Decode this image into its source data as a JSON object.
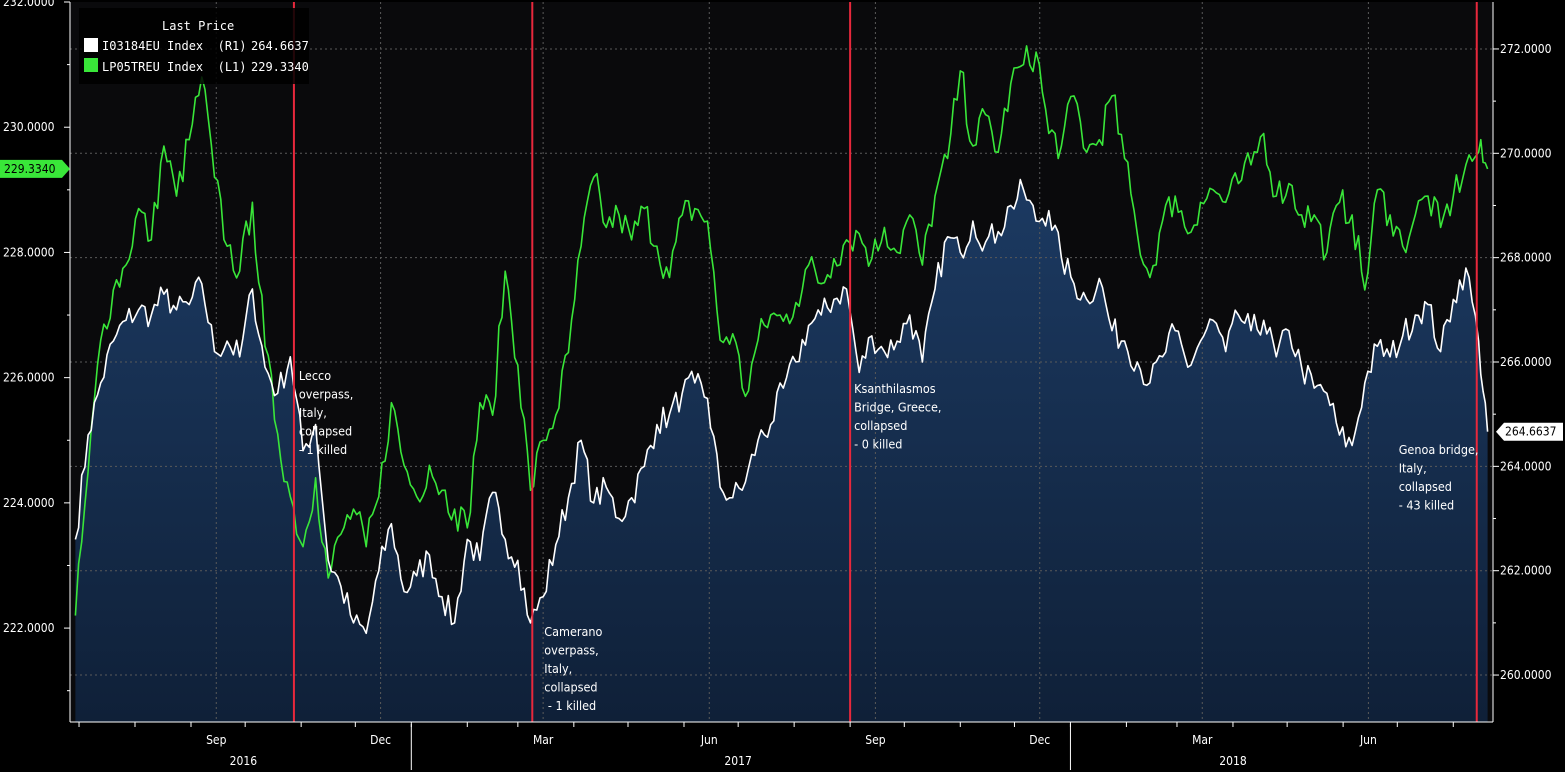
{
  "chart_data": {
    "type": "line",
    "legend": {
      "title": "Last Price",
      "placement": "top-left",
      "entries": [
        {
          "label": "I03184EU Index  (R1)",
          "value": "264.6637",
          "color": "#ffffff"
        },
        {
          "label": "LP05TREU Index  (L1)",
          "value": "229.3340",
          "color": "#39e639"
        }
      ]
    },
    "grid": true,
    "x_axis": {
      "month_ticks": [
        "Sep",
        "Dec",
        "Mar",
        "Jun",
        "Sep",
        "Dec",
        "Mar",
        "Jun"
      ],
      "year_labels": [
        "2016",
        "2017",
        "2018"
      ]
    },
    "y_left": {
      "ylim": [
        220.5,
        232.0
      ],
      "ticks": [
        "232.0000",
        "230.0000",
        "228.0000",
        "226.0000",
        "224.0000",
        "222.0000"
      ],
      "last_value_tag": "229.3340",
      "last_value": 229.334
    },
    "y_right": {
      "ylim": [
        259.1,
        272.9
      ],
      "ticks": [
        "272.0000",
        "270.0000",
        "268.0000",
        "266.0000",
        "264.0000",
        "262.0000",
        "260.0000"
      ],
      "last_value_tag": "264.6637",
      "last_value": 264.6637
    },
    "events": [
      {
        "date": "2016-10-28",
        "label_lines": [
          "Lecco",
          "overpass,",
          "Italy,",
          "collapsed",
          "- 1 killed"
        ]
      },
      {
        "date": "2017-03-09",
        "label_lines": [
          "Camerano",
          "overpass,",
          "Italy,",
          "collapsed",
          " - 1 killed"
        ]
      },
      {
        "date": "2017-09-01",
        "label_lines": [
          "Ksanthilasmos",
          "Bridge, Greece,",
          "collapsed",
          "- 0 killed"
        ]
      },
      {
        "date": "2018-08-14",
        "label_lines": [
          "Genoa bridge,",
          "Italy,",
          "collapsed",
          "- 43 killed"
        ]
      }
    ],
    "series": [
      {
        "name": "LP05TREU Index",
        "axis": "left",
        "color": "#39e639",
        "points": [
          [
            "2016-06-29",
            222.2
          ],
          [
            "2016-07-06",
            224.5
          ],
          [
            "2016-07-13",
            226.6
          ],
          [
            "2016-07-20",
            227.4
          ],
          [
            "2016-07-27",
            227.8
          ],
          [
            "2016-08-03",
            228.7
          ],
          [
            "2016-08-10",
            228.2
          ],
          [
            "2016-08-17",
            229.7
          ],
          [
            "2016-08-24",
            228.9
          ],
          [
            "2016-08-31",
            229.8
          ],
          [
            "2016-09-07",
            230.8
          ],
          [
            "2016-09-14",
            229.2
          ],
          [
            "2016-09-21",
            228.1
          ],
          [
            "2016-09-28",
            227.7
          ],
          [
            "2016-10-05",
            228.8
          ],
          [
            "2016-10-12",
            226.5
          ],
          [
            "2016-10-19",
            225.1
          ],
          [
            "2016-10-26",
            224.1
          ],
          [
            "2016-11-02",
            223.3
          ],
          [
            "2016-11-09",
            224.4
          ],
          [
            "2016-11-16",
            222.8
          ],
          [
            "2016-11-23",
            223.5
          ],
          [
            "2016-11-30",
            223.9
          ],
          [
            "2016-12-07",
            223.3
          ],
          [
            "2016-12-14",
            224.1
          ],
          [
            "2016-12-21",
            225.6
          ],
          [
            "2016-12-28",
            224.6
          ],
          [
            "2017-01-04",
            224.1
          ],
          [
            "2017-01-11",
            224.6
          ],
          [
            "2017-01-18",
            224.2
          ],
          [
            "2017-01-25",
            223.9
          ],
          [
            "2017-02-01",
            223.6
          ],
          [
            "2017-02-08",
            225.6
          ],
          [
            "2017-02-15",
            225.4
          ],
          [
            "2017-02-22",
            227.7
          ],
          [
            "2017-03-01",
            226.2
          ],
          [
            "2017-03-08",
            224.2
          ],
          [
            "2017-03-15",
            225.0
          ],
          [
            "2017-03-22",
            225.4
          ],
          [
            "2017-03-29",
            226.4
          ],
          [
            "2017-04-05",
            228.1
          ],
          [
            "2017-04-12",
            229.2
          ],
          [
            "2017-04-19",
            228.4
          ],
          [
            "2017-04-26",
            228.6
          ],
          [
            "2017-05-03",
            228.2
          ],
          [
            "2017-05-10",
            228.7
          ],
          [
            "2017-05-17",
            228.1
          ],
          [
            "2017-05-24",
            227.6
          ],
          [
            "2017-05-31",
            228.6
          ],
          [
            "2017-06-07",
            228.7
          ],
          [
            "2017-06-14",
            228.5
          ],
          [
            "2017-06-21",
            226.6
          ],
          [
            "2017-06-28",
            226.7
          ],
          [
            "2017-07-05",
            225.7
          ],
          [
            "2017-07-12",
            226.6
          ],
          [
            "2017-07-19",
            227.0
          ],
          [
            "2017-07-26",
            226.9
          ],
          [
            "2017-08-02",
            227.2
          ],
          [
            "2017-08-09",
            227.8
          ],
          [
            "2017-08-16",
            227.5
          ],
          [
            "2017-08-23",
            227.9
          ],
          [
            "2017-08-30",
            228.2
          ],
          [
            "2017-09-06",
            228.3
          ],
          [
            "2017-09-13",
            227.9
          ],
          [
            "2017-09-20",
            228.4
          ],
          [
            "2017-09-27",
            228.0
          ],
          [
            "2017-10-04",
            228.6
          ],
          [
            "2017-10-11",
            227.8
          ],
          [
            "2017-10-18",
            228.9
          ],
          [
            "2017-10-25",
            229.5
          ],
          [
            "2017-11-01",
            230.9
          ],
          [
            "2017-11-08",
            229.7
          ],
          [
            "2017-11-15",
            230.2
          ],
          [
            "2017-11-22",
            229.6
          ],
          [
            "2017-11-29",
            230.7
          ],
          [
            "2017-12-06",
            231.0
          ],
          [
            "2017-12-13",
            231.2
          ],
          [
            "2017-12-20",
            229.9
          ],
          [
            "2017-12-27",
            229.7
          ],
          [
            "2018-01-03",
            230.5
          ],
          [
            "2018-01-10",
            229.6
          ],
          [
            "2018-01-17",
            229.8
          ],
          [
            "2018-01-24",
            230.5
          ],
          [
            "2018-01-31",
            229.5
          ],
          [
            "2018-02-07",
            228.3
          ],
          [
            "2018-02-14",
            227.6
          ],
          [
            "2018-02-21",
            228.5
          ],
          [
            "2018-02-28",
            228.9
          ],
          [
            "2018-03-07",
            228.3
          ],
          [
            "2018-03-14",
            228.8
          ],
          [
            "2018-03-21",
            229.0
          ],
          [
            "2018-03-28",
            228.8
          ],
          [
            "2018-04-04",
            229.1
          ],
          [
            "2018-04-11",
            229.4
          ],
          [
            "2018-04-18",
            229.9
          ],
          [
            "2018-04-25",
            228.9
          ],
          [
            "2018-05-02",
            229.1
          ],
          [
            "2018-05-09",
            228.6
          ],
          [
            "2018-05-16",
            228.6
          ],
          [
            "2018-05-23",
            228.0
          ],
          [
            "2018-05-30",
            228.8
          ],
          [
            "2018-06-06",
            228.6
          ],
          [
            "2018-06-13",
            227.4
          ],
          [
            "2018-06-20",
            229.0
          ],
          [
            "2018-06-27",
            228.6
          ],
          [
            "2018-07-04",
            228.1
          ],
          [
            "2018-07-11",
            228.6
          ],
          [
            "2018-07-18",
            228.9
          ],
          [
            "2018-07-25",
            228.4
          ],
          [
            "2018-08-01",
            228.9
          ],
          [
            "2018-08-08",
            229.4
          ],
          [
            "2018-08-15",
            229.6
          ],
          [
            "2018-08-20",
            229.334
          ]
        ]
      },
      {
        "name": "I03184EU Index",
        "axis": "right",
        "color": "#ffffff",
        "points": [
          [
            "2016-06-29",
            262.6
          ],
          [
            "2016-07-06",
            264.6
          ],
          [
            "2016-07-13",
            265.6
          ],
          [
            "2016-07-20",
            266.4
          ],
          [
            "2016-07-27",
            266.8
          ],
          [
            "2016-08-03",
            267.0
          ],
          [
            "2016-08-10",
            266.9
          ],
          [
            "2016-08-17",
            267.3
          ],
          [
            "2016-08-24",
            267.0
          ],
          [
            "2016-08-31",
            267.1
          ],
          [
            "2016-09-07",
            267.5
          ],
          [
            "2016-09-14",
            266.2
          ],
          [
            "2016-09-21",
            266.4
          ],
          [
            "2016-09-28",
            266.1
          ],
          [
            "2016-10-05",
            267.4
          ],
          [
            "2016-10-12",
            265.9
          ],
          [
            "2016-10-19",
            265.4
          ],
          [
            "2016-10-26",
            266.1
          ],
          [
            "2016-11-02",
            264.3
          ],
          [
            "2016-11-09",
            264.8
          ],
          [
            "2016-11-16",
            262.2
          ],
          [
            "2016-11-23",
            261.7
          ],
          [
            "2016-11-30",
            261.0
          ],
          [
            "2016-12-07",
            260.8
          ],
          [
            "2016-12-14",
            262.0
          ],
          [
            "2016-12-21",
            262.9
          ],
          [
            "2016-12-28",
            261.6
          ],
          [
            "2017-01-04",
            261.9
          ],
          [
            "2017-01-11",
            262.3
          ],
          [
            "2017-01-18",
            261.5
          ],
          [
            "2017-01-25",
            261.0
          ],
          [
            "2017-02-01",
            262.6
          ],
          [
            "2017-02-08",
            262.2
          ],
          [
            "2017-02-15",
            263.5
          ],
          [
            "2017-02-22",
            262.6
          ],
          [
            "2017-03-01",
            262.2
          ],
          [
            "2017-03-08",
            261.0
          ],
          [
            "2017-03-15",
            261.5
          ],
          [
            "2017-03-22",
            262.5
          ],
          [
            "2017-03-29",
            263.4
          ],
          [
            "2017-04-05",
            264.5
          ],
          [
            "2017-04-12",
            263.3
          ],
          [
            "2017-04-19",
            263.6
          ],
          [
            "2017-04-26",
            263.0
          ],
          [
            "2017-05-03",
            263.4
          ],
          [
            "2017-05-10",
            264.0
          ],
          [
            "2017-05-17",
            264.8
          ],
          [
            "2017-05-24",
            265.0
          ],
          [
            "2017-05-31",
            265.4
          ],
          [
            "2017-06-07",
            265.6
          ],
          [
            "2017-06-14",
            265.3
          ],
          [
            "2017-06-21",
            263.6
          ],
          [
            "2017-06-28",
            263.4
          ],
          [
            "2017-07-05",
            263.7
          ],
          [
            "2017-07-12",
            264.5
          ],
          [
            "2017-07-19",
            264.8
          ],
          [
            "2017-07-26",
            265.5
          ],
          [
            "2017-08-02",
            266.0
          ],
          [
            "2017-08-09",
            266.7
          ],
          [
            "2017-08-16",
            266.9
          ],
          [
            "2017-08-23",
            267.2
          ],
          [
            "2017-08-30",
            267.4
          ],
          [
            "2017-09-06",
            265.8
          ],
          [
            "2017-09-13",
            266.5
          ],
          [
            "2017-09-20",
            266.2
          ],
          [
            "2017-09-27",
            266.4
          ],
          [
            "2017-10-04",
            266.9
          ],
          [
            "2017-10-11",
            266.0
          ],
          [
            "2017-10-18",
            267.4
          ],
          [
            "2017-10-25",
            268.4
          ],
          [
            "2017-11-01",
            268.1
          ],
          [
            "2017-11-08",
            268.7
          ],
          [
            "2017-11-15",
            268.3
          ],
          [
            "2017-11-22",
            268.5
          ],
          [
            "2017-11-29",
            269.0
          ],
          [
            "2017-12-06",
            269.3
          ],
          [
            "2017-12-13",
            268.7
          ],
          [
            "2017-12-20",
            268.9
          ],
          [
            "2017-12-27",
            268.0
          ],
          [
            "2018-01-03",
            267.5
          ],
          [
            "2018-01-10",
            267.2
          ],
          [
            "2018-01-17",
            267.6
          ],
          [
            "2018-01-24",
            266.6
          ],
          [
            "2018-01-31",
            266.4
          ],
          [
            "2018-02-07",
            266.0
          ],
          [
            "2018-02-14",
            265.6
          ],
          [
            "2018-02-21",
            266.1
          ],
          [
            "2018-02-28",
            266.6
          ],
          [
            "2018-03-07",
            265.9
          ],
          [
            "2018-03-14",
            266.4
          ],
          [
            "2018-03-21",
            266.8
          ],
          [
            "2018-03-28",
            266.2
          ],
          [
            "2018-04-04",
            266.9
          ],
          [
            "2018-04-11",
            266.6
          ],
          [
            "2018-04-18",
            266.8
          ],
          [
            "2018-04-25",
            266.1
          ],
          [
            "2018-05-02",
            266.6
          ],
          [
            "2018-05-09",
            265.9
          ],
          [
            "2018-05-16",
            265.5
          ],
          [
            "2018-05-23",
            265.4
          ],
          [
            "2018-05-30",
            264.6
          ],
          [
            "2018-06-06",
            264.4
          ],
          [
            "2018-06-13",
            265.6
          ],
          [
            "2018-06-20",
            266.3
          ],
          [
            "2018-06-27",
            266.1
          ],
          [
            "2018-07-04",
            266.5
          ],
          [
            "2018-07-11",
            266.9
          ],
          [
            "2018-07-18",
            267.1
          ],
          [
            "2018-07-25",
            266.2
          ],
          [
            "2018-08-01",
            267.2
          ],
          [
            "2018-08-08",
            267.8
          ],
          [
            "2018-08-15",
            266.4
          ],
          [
            "2018-08-20",
            264.6637
          ]
        ]
      }
    ]
  }
}
